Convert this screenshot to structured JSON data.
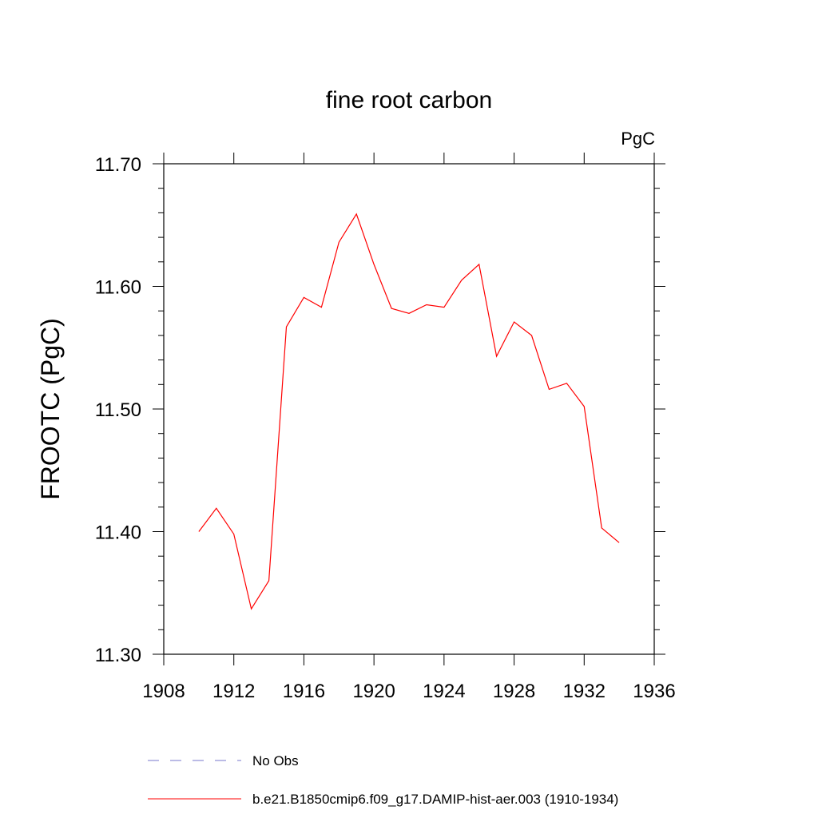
{
  "chart_data": {
    "type": "line",
    "title": "fine root carbon",
    "units_label": "PgC",
    "ylabel": "FROOTC  (PgC)",
    "xlabel": "",
    "xlim": [
      1908,
      1936
    ],
    "ylim": [
      11.3,
      11.7
    ],
    "x_ticks": [
      "1908",
      "1912",
      "1916",
      "1920",
      "1924",
      "1928",
      "1932",
      "1936"
    ],
    "y_ticks": [
      "11.30",
      "11.40",
      "11.50",
      "11.60",
      "11.70"
    ],
    "grid": false,
    "legend_position": "bottom",
    "series": [
      {
        "name": "b.e21.B1850cmip6.f09_g17.DAMIP-hist-aer.003 (1910-1934)",
        "color": "#ff0000",
        "dash": "solid",
        "x": [
          1910,
          1911,
          1912,
          1913,
          1914,
          1915,
          1916,
          1917,
          1918,
          1919,
          1920,
          1921,
          1922,
          1923,
          1924,
          1925,
          1926,
          1927,
          1928,
          1929,
          1930,
          1931,
          1932,
          1933,
          1934
        ],
        "y": [
          11.4,
          11.419,
          11.398,
          11.337,
          11.36,
          11.567,
          11.591,
          11.583,
          11.636,
          11.659,
          11.618,
          11.582,
          11.578,
          11.585,
          11.583,
          11.605,
          11.618,
          11.543,
          11.571,
          11.56,
          11.516,
          11.521,
          11.502,
          11.403,
          11.391
        ]
      }
    ],
    "legend": [
      {
        "label": "No Obs",
        "color": "#7777cc",
        "dash": "dashed"
      },
      {
        "label": "b.e21.B1850cmip6.f09_g17.DAMIP-hist-aer.003 (1910-1934)",
        "color": "#ff0000",
        "dash": "solid"
      }
    ]
  }
}
